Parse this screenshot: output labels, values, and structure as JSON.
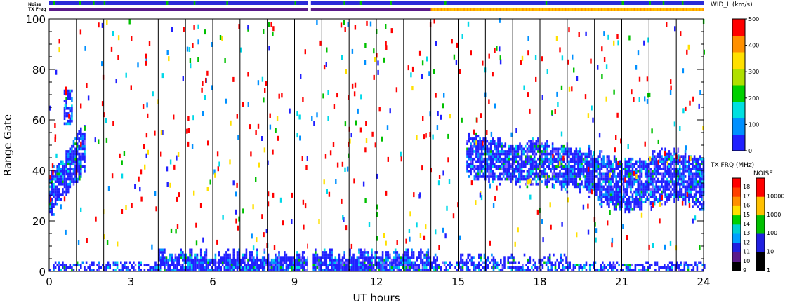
{
  "chart_data": {
    "type": "heatmap",
    "title": "",
    "xlabel": "UT hours",
    "ylabel": "Range Gate",
    "xlim": [
      0,
      24
    ],
    "ylim": [
      0,
      100
    ],
    "xticks": [
      0,
      3,
      6,
      9,
      12,
      15,
      18,
      21,
      24
    ],
    "yticks": [
      0,
      20,
      40,
      60,
      80,
      100
    ],
    "hour_gridlines": [
      1,
      2,
      3,
      4,
      5,
      6,
      7,
      8,
      9,
      10,
      11,
      12,
      13,
      14,
      15,
      16,
      17,
      18,
      19,
      20,
      21,
      22,
      23
    ],
    "data_gap_hours": [
      9.5,
      9.6
    ],
    "top_bars": {
      "noise_label": "Noise",
      "txfreq_label": "TX Freq",
      "noise_color": "#2a2ad8",
      "noise_green_hours": [
        0.15,
        1.1,
        1.6,
        2.0,
        4.3,
        5.3,
        6.5,
        9.0,
        10.8,
        11.4,
        12.5,
        14.5,
        18.2,
        21.0,
        22.0,
        22.5,
        23.2
      ],
      "txfreq_segments": [
        {
          "start": 0,
          "end": 14.0,
          "color": "#5a1a8a"
        },
        {
          "start": 14.0,
          "end": 24,
          "color": "#ffc000"
        }
      ]
    },
    "velocity_colorbar": {
      "title": "WID_L (km/s)",
      "range": [
        0,
        500
      ],
      "ticks": [
        0,
        100,
        200,
        300,
        400,
        500
      ],
      "colors": [
        "#2020ff",
        "#0090ff",
        "#00e0e0",
        "#00d000",
        "#b0e000",
        "#ffe000",
        "#ff9000",
        "#ff0000"
      ]
    },
    "txfreq_colorbar": {
      "title": "TX FRQ (MHz)",
      "ticks": [
        "9",
        "10",
        "11",
        "12",
        "13",
        "14",
        "15",
        "16",
        "17",
        "18"
      ],
      "colors": [
        "#000000",
        "#5a1a8a",
        "#2020e0",
        "#00a0ff",
        "#00d0d0",
        "#00d000",
        "#ffe000",
        "#ff9000",
        "#ff4000",
        "#ff0000"
      ]
    },
    "noise_colorbar": {
      "title": "NOISE",
      "ticks": [
        "1",
        "10",
        "100",
        "1000",
        "10000"
      ],
      "colors": [
        "#000000",
        "#2020e0",
        "#00c000",
        "#ffc000",
        "#ff0000"
      ]
    },
    "series": [
      {
        "kind": "near-range band",
        "x_range": [
          0,
          24
        ],
        "gate_range": [
          0,
          9
        ],
        "dominant_color": "#2020ff"
      },
      {
        "kind": "morning cluster",
        "x_range": [
          0,
          1.3
        ],
        "gate_range": [
          19,
          76
        ],
        "dominant_color": "#2020ff"
      },
      {
        "kind": "afternoon cluster",
        "x_range": [
          15.3,
          24
        ],
        "gate_range": [
          20,
          58
        ],
        "dominant_color": "#2020ff"
      }
    ]
  }
}
